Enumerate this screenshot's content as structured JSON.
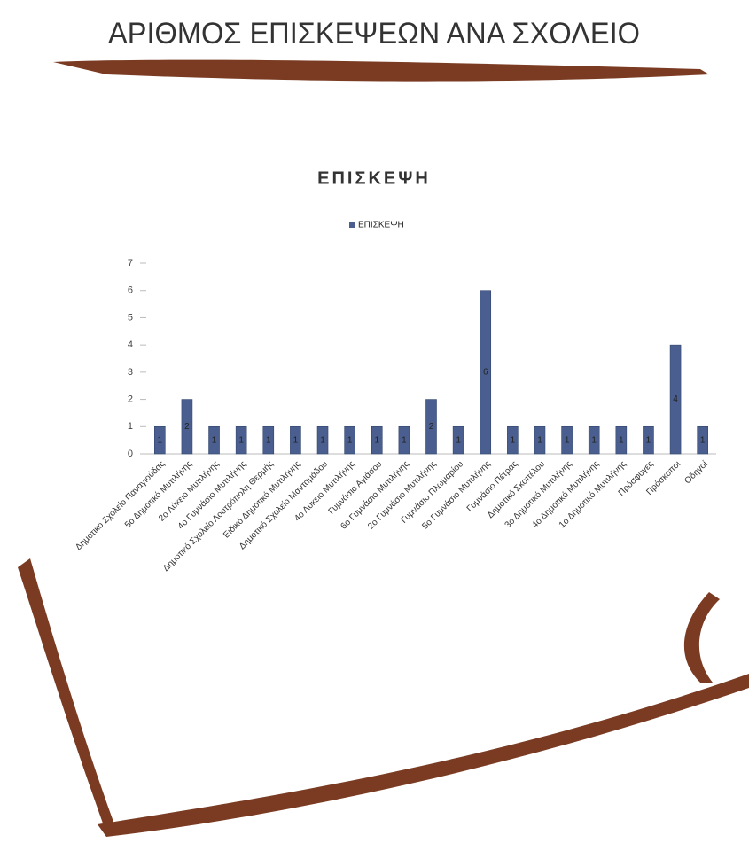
{
  "header": {
    "title": "ΑΡΙΘΜΟΣ ΕΠΙΣΚΕΨΕΩΝ ΑΝΑ ΣΧΟΛΕΙΟ"
  },
  "chart_data": {
    "type": "bar",
    "title": "ΕΠΙΣΚΕΨΗ",
    "categories": [
      "Δημοτικό Σχολείο Παναγιούδας",
      "5ο Δημοτικό Μυτιλήνης",
      "2ο Λύκειο Μυτιλήνης",
      "4ο Γυμνάσιο Μυτιλήνης",
      "Δημοτικό Σχολείο Λουτρόπολη Θερμής",
      "Ειδικό Δημοτικό Μυτιλήνης",
      "Δημοτικό Σχολείο Μανταμάδου",
      "4ο Λύκειο Μυτιλήνης",
      "Γυμνάσιο Αγιάσου",
      "6ο Γυμνάσιο Μυτιλήνης",
      "2ο Γυμνάσιο Μυτιλήνης",
      "Γυμνάσιο Πλωμαρίου",
      "5ο Γυμνάσιο Μυτιλήνης",
      "Γυμνάσιο Πέτρας",
      "Δημοτικό Σκοπέλου",
      "3ο Δημοτικό Μυτιλήνης",
      "4ο Δημοτικό Μυτιλήνης",
      "1ο Δημοτικό Μυτιλήνης",
      "Πρόσφυγες",
      "Πρόσκοποι",
      "Οδηγοί"
    ],
    "series": [
      {
        "name": "ΕΠΙΣΚΕΨΗ",
        "color": "#4a5f8f",
        "values": [
          1,
          2,
          1,
          1,
          1,
          1,
          1,
          1,
          1,
          1,
          2,
          1,
          6,
          1,
          1,
          1,
          1,
          1,
          1,
          4,
          1
        ]
      }
    ],
    "ylim": [
      0,
      7
    ],
    "yticks": [
      0,
      1,
      2,
      3,
      4,
      5,
      6,
      7
    ],
    "legend": "top",
    "data_labels": true
  }
}
